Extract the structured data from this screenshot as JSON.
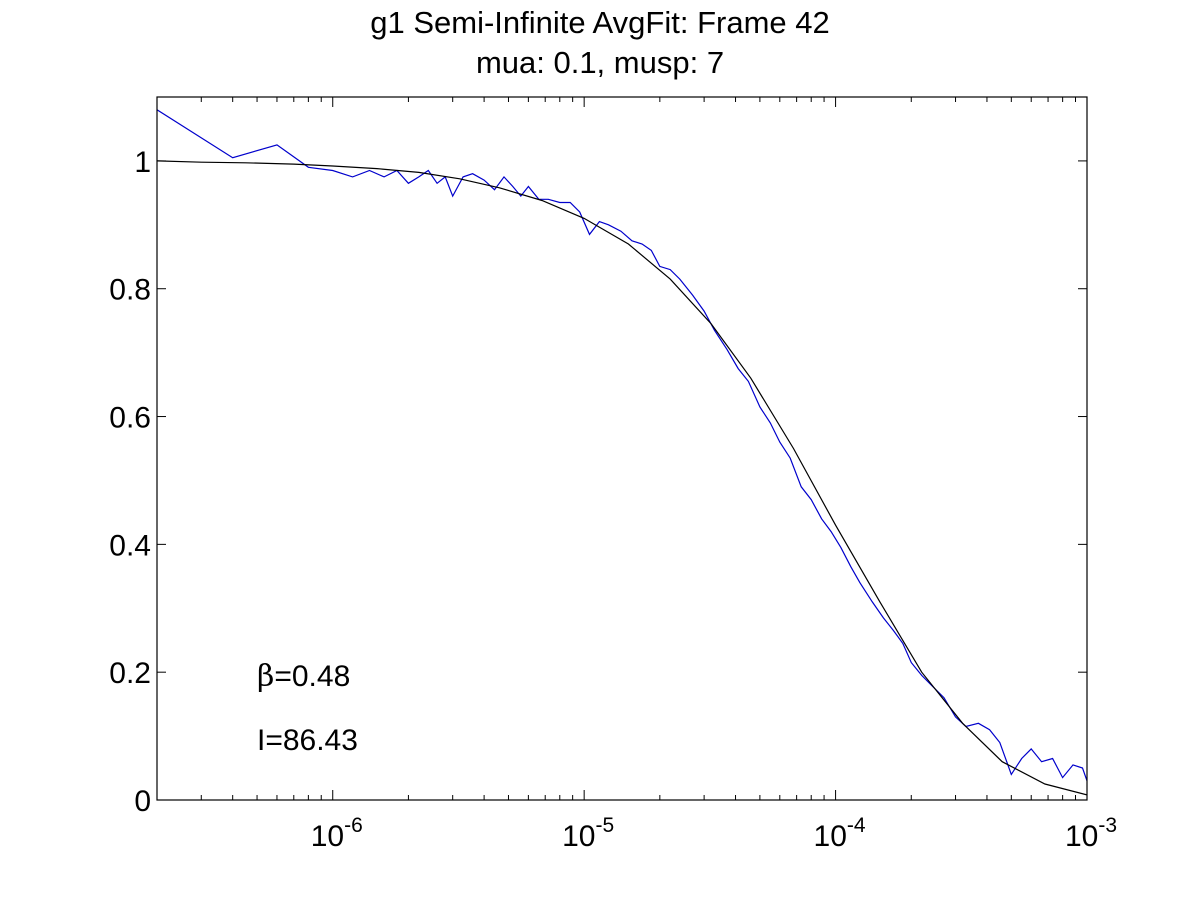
{
  "chart_data": {
    "type": "line",
    "title": "g1 Semi-Infinite AvgFit: Frame 42",
    "subtitle": "mua: 0.1, musp: 7",
    "xlabel": "",
    "ylabel": "",
    "x_scale": "log",
    "xlim": [
      2e-07,
      0.001
    ],
    "ylim": [
      0,
      1.1
    ],
    "x_ticks": [
      {
        "value": 1e-06,
        "base": "10",
        "exp": "-6"
      },
      {
        "value": 1e-05,
        "base": "10",
        "exp": "-5"
      },
      {
        "value": 0.0001,
        "base": "10",
        "exp": "-4"
      },
      {
        "value": 0.001,
        "base": "10",
        "exp": "-3"
      }
    ],
    "y_ticks": [
      {
        "value": 0,
        "label": "0"
      },
      {
        "value": 0.2,
        "label": "0.2"
      },
      {
        "value": 0.4,
        "label": "0.4"
      },
      {
        "value": 0.6,
        "label": "0.6"
      },
      {
        "value": 0.8,
        "label": "0.8"
      },
      {
        "value": 1,
        "label": "1"
      }
    ],
    "grid": false,
    "legend": "none",
    "annotations": [
      {
        "symbol": "β",
        "text": "=0.48"
      },
      {
        "symbol": "",
        "text": "I=86.43"
      }
    ],
    "series": [
      {
        "color": "#0000cc",
        "x": [
          2e-07,
          4e-07,
          6e-07,
          8e-07,
          1e-06,
          1.2e-06,
          1.4e-06,
          1.6e-06,
          1.8e-06,
          2e-06,
          2.2e-06,
          2.4e-06,
          2.6e-06,
          2.8e-06,
          3e-06,
          3.3e-06,
          3.6e-06,
          4e-06,
          4.4e-06,
          4.8e-06,
          5.2e-06,
          5.6e-06,
          6e-06,
          6.6e-06,
          7.2e-06,
          8e-06,
          8.8e-06,
          9.6e-06,
          1.05e-05,
          1.15e-05,
          1.25e-05,
          1.4e-05,
          1.55e-05,
          1.7e-05,
          1.85e-05,
          2e-05,
          2.2e-05,
          2.4e-05,
          2.7e-05,
          3e-05,
          3.3e-05,
          3.7e-05,
          4.1e-05,
          4.5e-05,
          5e-05,
          5.5e-05,
          6e-05,
          6.6e-05,
          7.3e-05,
          8e-05,
          8.8e-05,
          9.6e-05,
          0.000105,
          0.000115,
          0.000125,
          0.00014,
          0.000155,
          0.00017,
          0.000185,
          0.0002,
          0.00022,
          0.00024,
          0.00027,
          0.0003,
          0.00033,
          0.00037,
          0.00041,
          0.00045,
          0.0005,
          0.00055,
          0.0006,
          0.00066,
          0.00073,
          0.0008,
          0.00088,
          0.00096,
          0.001
        ],
        "y": [
          1.08,
          1.005,
          1.025,
          0.99,
          0.985,
          0.975,
          0.985,
          0.975,
          0.985,
          0.965,
          0.975,
          0.985,
          0.965,
          0.975,
          0.945,
          0.975,
          0.98,
          0.97,
          0.955,
          0.975,
          0.96,
          0.945,
          0.96,
          0.94,
          0.94,
          0.935,
          0.935,
          0.92,
          0.885,
          0.905,
          0.9,
          0.89,
          0.875,
          0.87,
          0.86,
          0.835,
          0.83,
          0.815,
          0.79,
          0.765,
          0.735,
          0.705,
          0.675,
          0.655,
          0.615,
          0.59,
          0.56,
          0.535,
          0.49,
          0.47,
          0.44,
          0.42,
          0.395,
          0.365,
          0.34,
          0.31,
          0.285,
          0.265,
          0.245,
          0.215,
          0.195,
          0.18,
          0.16,
          0.13,
          0.115,
          0.12,
          0.11,
          0.09,
          0.04,
          0.065,
          0.08,
          0.06,
          0.065,
          0.035,
          0.055,
          0.05,
          0.03
        ]
      },
      {
        "color": "#000000",
        "x": [
          2e-07,
          3e-07,
          4.5e-07,
          7e-07,
          1e-06,
          1.5e-06,
          2.2e-06,
          3.2e-06,
          4.6e-06,
          6.8e-06,
          1e-05,
          1.5e-05,
          2.2e-05,
          3.2e-05,
          4.6e-05,
          6.8e-05,
          0.0001,
          0.00015,
          0.00022,
          0.00032,
          0.00046,
          0.00068,
          0.001
        ],
        "y": [
          1.0,
          0.998,
          0.997,
          0.995,
          0.992,
          0.988,
          0.982,
          0.972,
          0.958,
          0.938,
          0.91,
          0.87,
          0.815,
          0.745,
          0.66,
          0.55,
          0.43,
          0.31,
          0.2,
          0.12,
          0.06,
          0.025,
          0.008
        ]
      }
    ]
  }
}
